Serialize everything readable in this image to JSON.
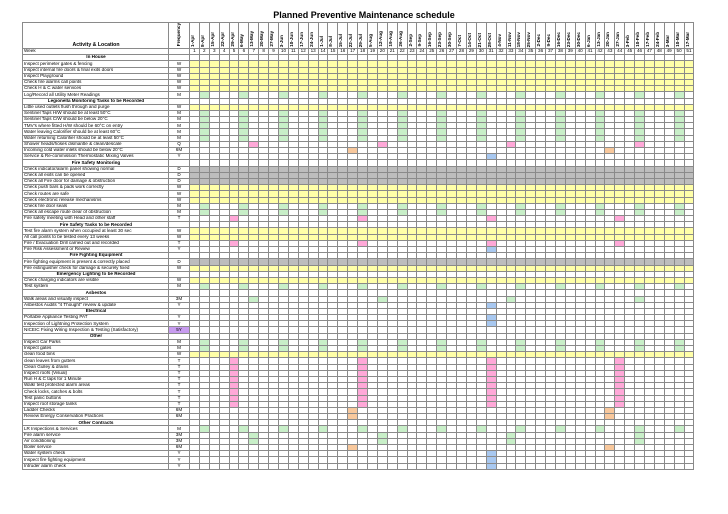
{
  "title": "Planned Preventive Maintenance schedule",
  "header": {
    "activity_label": "Activity & Location",
    "frequency_label": "Frequency",
    "week_label": "Week"
  },
  "weeks": [
    "1-Apr",
    "8-Apr",
    "15-Apr",
    "22-Apr",
    "29-Apr",
    "6-May",
    "13-May",
    "20-May",
    "27-May",
    "3-Jun",
    "10-Jun",
    "17-Jun",
    "24-Jun",
    "1-Jul",
    "8-Jul",
    "15-Jul",
    "22-Jul",
    "29-Jul",
    "5-Aug",
    "12-Aug",
    "19-Aug",
    "26-Aug",
    "2-Sep",
    "9-Sep",
    "16-Sep",
    "23-Sep",
    "30-Sep",
    "7-Oct",
    "14-Oct",
    "21-Oct",
    "28-Oct",
    "4-Nov",
    "11-Nov",
    "18-Nov",
    "25-Nov",
    "2-Dec",
    "9-Dec",
    "16-Dec",
    "23-Dec",
    "30-Dec",
    "6-Jan",
    "13-Jan",
    "20-Jan",
    "27-Jan",
    "3-Feb",
    "10-Feb",
    "17-Feb",
    "24-Feb",
    "3-Mar",
    "10-Mar",
    "17-Mar"
  ],
  "week_numbers": [
    "1",
    "2",
    "3",
    "4",
    "5",
    "6",
    "7",
    "8",
    "9",
    "10",
    "11",
    "12",
    "13",
    "14",
    "15",
    "16",
    "17",
    "18",
    "19",
    "20",
    "21",
    "22",
    "23",
    "24",
    "25",
    "26",
    "27",
    "28",
    "29",
    "30",
    "31",
    "32",
    "33",
    "34",
    "35",
    "36",
    "37",
    "38",
    "39",
    "40",
    "41",
    "42",
    "43",
    "44",
    "45",
    "46",
    "47",
    "48",
    "49",
    "50",
    "51"
  ],
  "rows": [
    {
      "section": "In House"
    },
    {
      "label": "Inspect perimeter gates & fencing",
      "freq": "W",
      "pattern": "W",
      "color": "y"
    },
    {
      "label": "Inspect internal fire doors & final exits doors",
      "freq": "W",
      "pattern": "W",
      "color": "y"
    },
    {
      "label": "Inspect Playground",
      "freq": "W",
      "pattern": "W",
      "color": "y"
    },
    {
      "label": "Check fire alarms call points",
      "freq": "W",
      "pattern": "W",
      "color": "y"
    },
    {
      "label": "Check H & C water services",
      "freq": "W",
      "pattern": "W",
      "color": "y"
    },
    {
      "label": "Log/Record all Utility Meter Readings",
      "freq": "M",
      "pattern": "M",
      "color": "g"
    },
    {
      "section": "Legionella Monitoring Tasks to be Recorded"
    },
    {
      "label": "Little used outlets flush through and purge",
      "freq": "W",
      "pattern": "W",
      "color": "y"
    },
    {
      "label": "Sentinel Taps H/W should be at least 50°C",
      "freq": "M",
      "pattern": "M",
      "color": "g"
    },
    {
      "label": "Sentinel Taps C/W should be below 20°C",
      "freq": "M",
      "pattern": "M",
      "color": "g"
    },
    {
      "label": "TMV's where fitted H/W should be 60°C on entry",
      "freq": "M",
      "pattern": "M",
      "color": "g"
    },
    {
      "label": "Water leaving Calorifier should be at least 60°C",
      "freq": "M",
      "pattern": "M",
      "color": "g"
    },
    {
      "label": "Water returning Calorifier should be at least 50°C",
      "freq": "M",
      "pattern": "M",
      "color": "g"
    },
    {
      "label": "Shower heads/hoses dismantle & clean/descale",
      "freq": "Q",
      "pattern": "Q",
      "color": "p"
    },
    {
      "label": "Incoming cold water inlets should be below 20°C",
      "freq": "6M",
      "pattern": "H",
      "color": "o"
    },
    {
      "label": "Service & Re-commission Thermostatic Mixing Valves",
      "freq": "Y",
      "pattern": "Y",
      "color": "b"
    },
    {
      "section": "Fire Safety Monitoring"
    },
    {
      "label": "Check indicator/alarm panel showing normal",
      "freq": "D",
      "pattern": "D",
      "color": "gr"
    },
    {
      "label": "Check all exits can be opened",
      "freq": "D",
      "pattern": "D",
      "color": "gr"
    },
    {
      "label": "Check all Fire door for damage & obstruction",
      "freq": "D",
      "pattern": "D",
      "color": "gr"
    },
    {
      "label": "Check push bars & pads work correctly",
      "freq": "W",
      "pattern": "W",
      "color": "y"
    },
    {
      "label": "Check routes are safe",
      "freq": "W",
      "pattern": "W",
      "color": "y"
    },
    {
      "label": "Check electronic release mechanisms",
      "freq": "W",
      "pattern": "W",
      "color": "y"
    },
    {
      "label": "Check fire door seals",
      "freq": "M",
      "pattern": "M",
      "color": "g"
    },
    {
      "label": "Check all escape route clear of obstruction",
      "freq": "M",
      "pattern": "M",
      "color": "g"
    },
    {
      "label": "Fire safety meeting with Head and other staff",
      "freq": "T",
      "pattern": "T",
      "color": "p"
    },
    {
      "section": "Fire Safety Tasks to be Recorded"
    },
    {
      "label": "Test fire alarm system when occupied at least 30 sec",
      "freq": "W",
      "pattern": "W",
      "color": "y"
    },
    {
      "label": "All call points to be tested every 13 weeks",
      "freq": "W",
      "pattern": "W",
      "color": "y"
    },
    {
      "label": "Fire / Evacuation Drill carried out and recorded",
      "freq": "T",
      "pattern": "T",
      "color": "p"
    },
    {
      "label": "Fire  Risk Assessment or Review",
      "freq": "Y",
      "pattern": "Y",
      "color": "b"
    },
    {
      "section": "Fire Fighting Equipment"
    },
    {
      "label": "Fire fighting equipment is present & correctly placed",
      "freq": "D",
      "pattern": "D",
      "color": "gr"
    },
    {
      "label": "Fire extinguisher check for damage & securely fixed",
      "freq": "W",
      "pattern": "W",
      "color": "y"
    },
    {
      "section": "Emergency Lighting to be Recorded"
    },
    {
      "label": "Check charging indicators are visible",
      "freq": "W",
      "pattern": "W",
      "color": "y"
    },
    {
      "label": "Test system",
      "freq": "M",
      "pattern": "M",
      "color": "g"
    },
    {
      "section": "Asbestos"
    },
    {
      "label": "Walk areas and visually inspect",
      "freq": "3M",
      "pattern": "Q",
      "color": "g"
    },
    {
      "label": "Asbestos Audits \"4 Thought\" review & update",
      "freq": "Y",
      "pattern": "Y",
      "color": "b"
    },
    {
      "section": "Electrical"
    },
    {
      "label": "Portable Appliance Testing PAT",
      "freq": "Y",
      "pattern": "Y",
      "color": "b"
    },
    {
      "label": "Inspection of Lightning Protection System",
      "freq": "Y",
      "pattern": "Y",
      "color": "b"
    },
    {
      "label": "NICEIC Fixing Wiring Inspection & Testing (Satisfactory)",
      "freq": "5Y",
      "pattern": "N",
      "color": "pu"
    },
    {
      "section": "Other"
    },
    {
      "label": "Inspect Car Parks",
      "freq": "M",
      "pattern": "M",
      "color": "g"
    },
    {
      "label": "Inspect gates",
      "freq": "M",
      "pattern": "M",
      "color": "g"
    },
    {
      "label": "clean food bins",
      "freq": "W",
      "pattern": "W",
      "color": "y"
    },
    {
      "label": "clean leaves from gutters",
      "freq": "T",
      "pattern": "T",
      "color": "p"
    },
    {
      "label": "Clean Gulley & drains",
      "freq": "T",
      "pattern": "T",
      "color": "p"
    },
    {
      "label": "Inspect roofs (Visual)",
      "freq": "T",
      "pattern": "T",
      "color": "p"
    },
    {
      "label": "Run H & C taps for 1 Minute",
      "freq": "T",
      "pattern": "T",
      "color": "p"
    },
    {
      "label": "Walk/ test protected alarm areas",
      "freq": "T",
      "pattern": "T",
      "color": "p"
    },
    {
      "label": "Check locks, catches & bolts",
      "freq": "T",
      "pattern": "T",
      "color": "p"
    },
    {
      "label": "Test panic buttons",
      "freq": "T",
      "pattern": "T",
      "color": "p"
    },
    {
      "label": "Inspect roof storage tanks",
      "freq": "T",
      "pattern": "T",
      "color": "p"
    },
    {
      "label": "Ladder Checks",
      "freq": "6M",
      "pattern": "H",
      "color": "o"
    },
    {
      "label": "Review Energy Conservation Practices",
      "freq": "6M",
      "pattern": "H",
      "color": "o"
    },
    {
      "section": "Other Contracts"
    },
    {
      "label": "LR Inspections & Services",
      "freq": "M",
      "pattern": "M",
      "color": "g"
    },
    {
      "label": "Fire alarm service",
      "freq": "3M",
      "pattern": "Q",
      "color": "g"
    },
    {
      "label": "Air conditioning",
      "freq": "3M",
      "pattern": "Q",
      "color": "g"
    },
    {
      "label": "Boiler service",
      "freq": "6M",
      "pattern": "H",
      "color": "o"
    },
    {
      "label": "Water system check",
      "freq": "Y",
      "pattern": "Y",
      "color": "b"
    },
    {
      "label": "Inspect fire fighting equipment",
      "freq": "Y",
      "pattern": "Y",
      "color": "b"
    },
    {
      "label": "Intruder alarm check",
      "freq": "Y",
      "pattern": "Y",
      "color": "b"
    }
  ],
  "colors": {
    "y": "#ffffa8",
    "g": "#c8efc8",
    "gr": "#bdbdbd",
    "p": "#ffa8d8",
    "b": "#a8c8f0",
    "o": "#f8c89c",
    "pu": "#c89cf0"
  }
}
